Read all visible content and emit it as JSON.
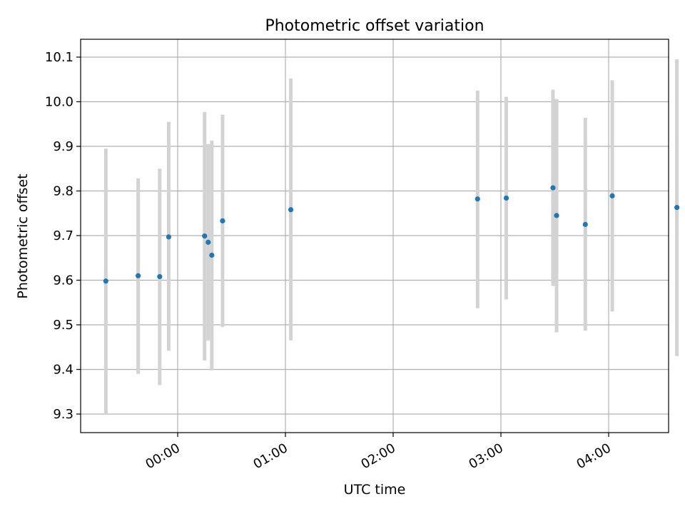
{
  "chart_data": {
    "type": "scatter",
    "title": "Photometric offset variation",
    "xlabel": "UTC time",
    "ylabel": "Photometric offset",
    "x_ticks": [
      "00:00",
      "01:00",
      "02:00",
      "03:00",
      "04:00"
    ],
    "y_ticks": [
      "9.3",
      "9.4",
      "9.5",
      "9.6",
      "9.7",
      "9.8",
      "9.9",
      "10.0",
      "10.1"
    ],
    "grid": true,
    "point_color": "#1f77b4",
    "errorbar_color": "#d3d3d3",
    "points": [
      {
        "t": "23:20",
        "y": 9.598,
        "low": 9.3,
        "high": 9.895
      },
      {
        "t": "23:38",
        "y": 9.61,
        "low": 9.39,
        "high": 9.828
      },
      {
        "t": "23:50",
        "y": 9.608,
        "low": 9.365,
        "high": 9.85
      },
      {
        "t": "23:55",
        "y": 9.697,
        "low": 9.442,
        "high": 9.955
      },
      {
        "t": "00:15",
        "y": 9.699,
        "low": 9.42,
        "high": 9.977
      },
      {
        "t": "00:17",
        "y": 9.685,
        "low": 9.465,
        "high": 9.905
      },
      {
        "t": "00:19",
        "y": 9.656,
        "low": 9.398,
        "high": 9.913
      },
      {
        "t": "00:25",
        "y": 9.733,
        "low": 9.495,
        "high": 9.971
      },
      {
        "t": "01:03",
        "y": 9.758,
        "low": 9.465,
        "high": 10.052
      },
      {
        "t": "02:47",
        "y": 9.782,
        "low": 9.537,
        "high": 10.025
      },
      {
        "t": "03:03",
        "y": 9.784,
        "low": 9.557,
        "high": 10.011
      },
      {
        "t": "03:29",
        "y": 9.807,
        "low": 9.587,
        "high": 10.027
      },
      {
        "t": "03:31",
        "y": 9.745,
        "low": 9.483,
        "high": 10.006
      },
      {
        "t": "03:47",
        "y": 9.725,
        "low": 9.487,
        "high": 9.964
      },
      {
        "t": "04:02",
        "y": 9.789,
        "low": 9.53,
        "high": 10.048
      },
      {
        "t": "04:38",
        "y": 9.763,
        "low": 9.43,
        "high": 10.095
      }
    ]
  }
}
